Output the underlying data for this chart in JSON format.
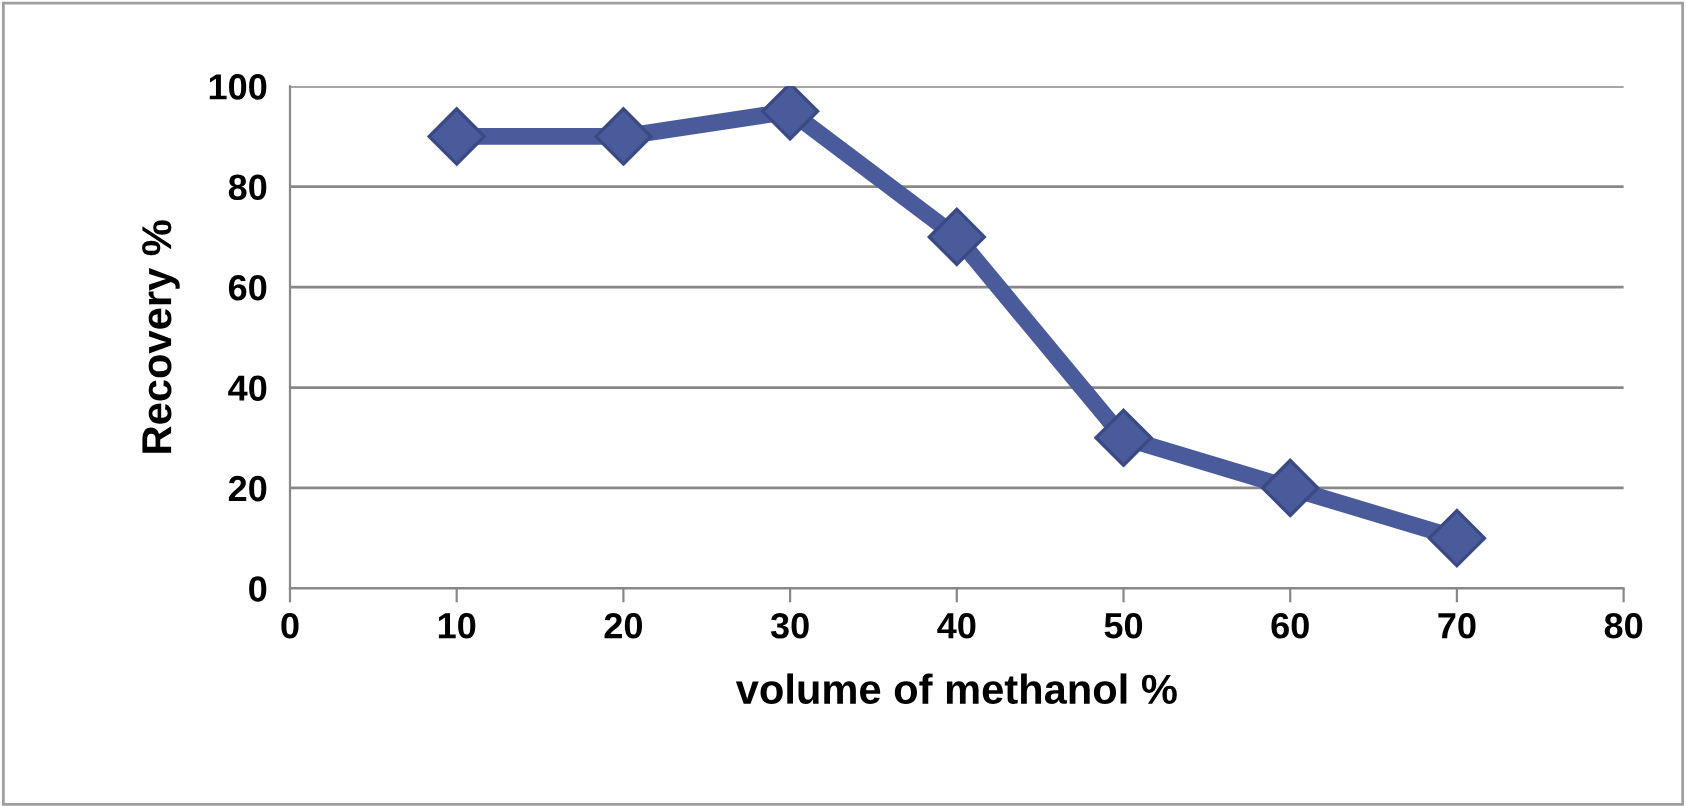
{
  "chart_data": {
    "type": "line",
    "xlabel": "volume of methanol %",
    "ylabel": "Recovery %",
    "x": [
      10,
      20,
      30,
      40,
      50,
      60,
      70
    ],
    "series": [
      {
        "color": "#4a5b9b",
        "values": [
          90,
          90,
          95,
          70,
          30,
          20,
          10
        ]
      }
    ],
    "xlim": [
      0,
      80
    ],
    "xticks": [
      0,
      10,
      20,
      30,
      40,
      50,
      60,
      70,
      80
    ],
    "ylim": [
      0,
      100
    ],
    "yticks": [
      0,
      20,
      40,
      60,
      80,
      100
    ],
    "grid": "y",
    "marker": "diamond",
    "line_style": "solid",
    "legend": false
  }
}
